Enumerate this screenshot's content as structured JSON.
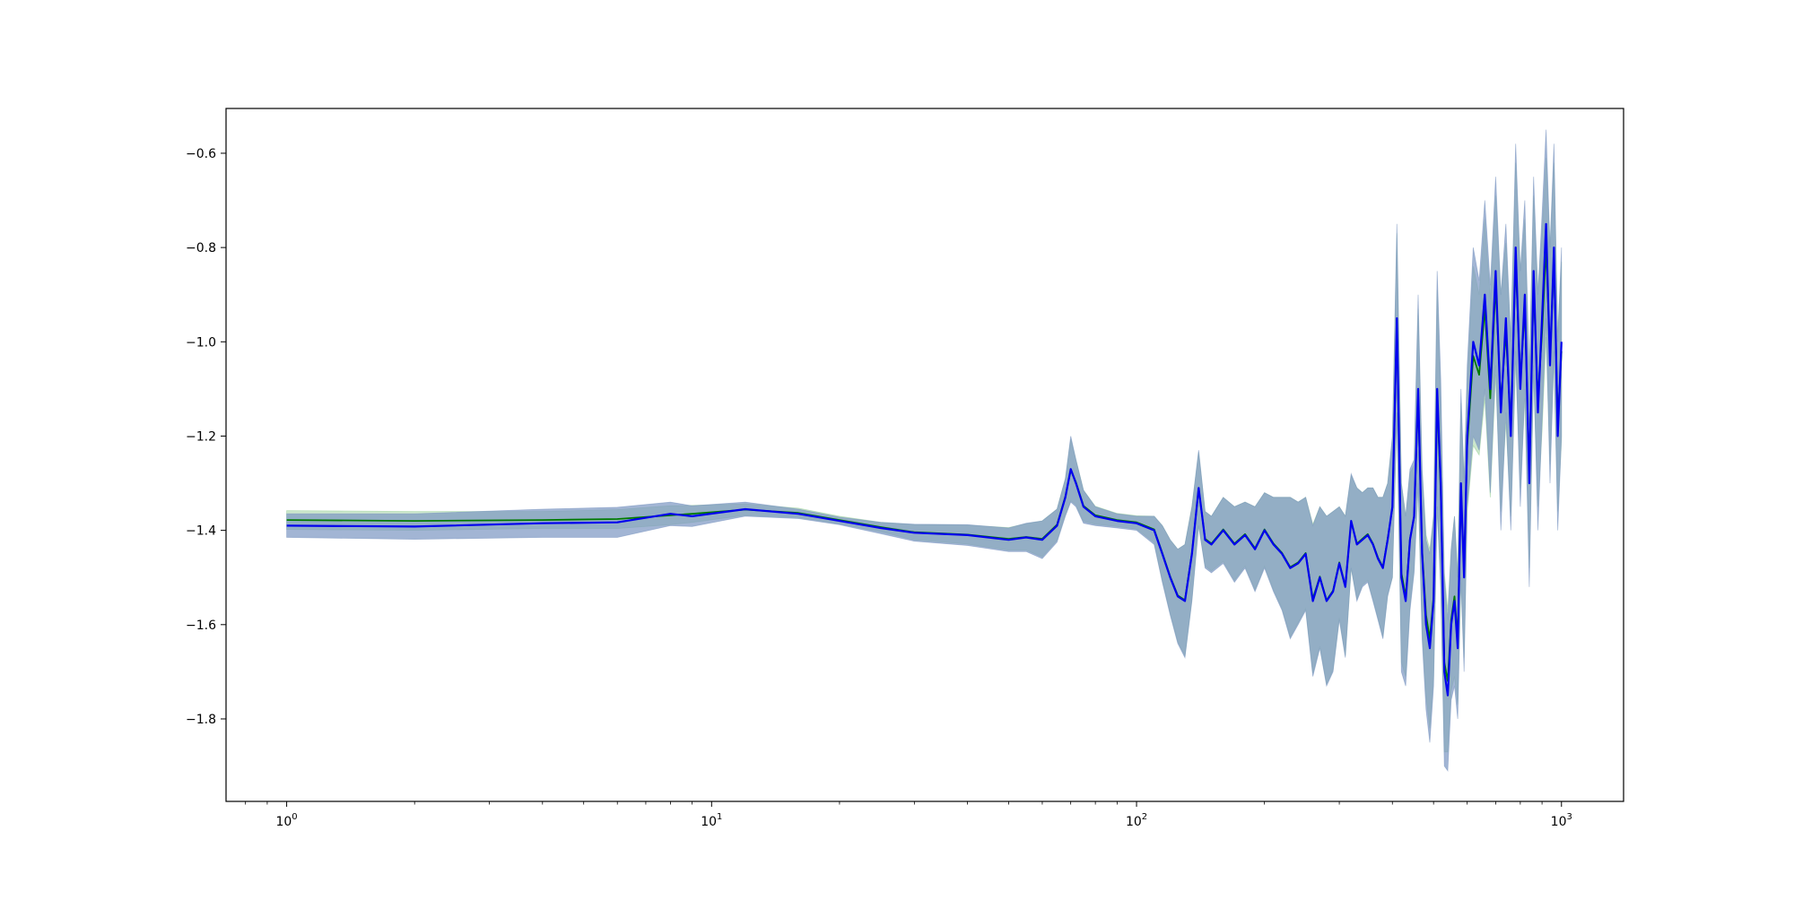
{
  "chart_data": {
    "type": "line",
    "title": "",
    "xlabel": "",
    "ylabel": "",
    "xscale": "log",
    "xlim": [
      0.72,
      1400
    ],
    "ylim": [
      -1.975,
      -0.505
    ],
    "grid": false,
    "legend": "none",
    "x_ticks": [
      {
        "value": 1,
        "base": "10",
        "exp": "0"
      },
      {
        "value": 10,
        "base": "10",
        "exp": "1"
      },
      {
        "value": 100,
        "base": "10",
        "exp": "2"
      },
      {
        "value": 1000,
        "base": "10",
        "exp": "3"
      }
    ],
    "y_ticks": [
      {
        "value": -0.6,
        "label": "−0.6"
      },
      {
        "value": -0.8,
        "label": "−0.8"
      },
      {
        "value": -1.0,
        "label": "−1.0"
      },
      {
        "value": -1.2,
        "label": "−1.2"
      },
      {
        "value": -1.4,
        "label": "−1.4"
      },
      {
        "value": -1.6,
        "label": "−1.6"
      },
      {
        "value": -1.8,
        "label": "−1.8"
      }
    ],
    "series": [
      {
        "color": "#0000ee",
        "band_color": "#7b96c2",
        "band_opacity": 0.7,
        "x": [
          1,
          2,
          4,
          6,
          8,
          9,
          12,
          16,
          20,
          25,
          30,
          40,
          50,
          55,
          60,
          65,
          68,
          70,
          72,
          75,
          80,
          90,
          100,
          110,
          115,
          120,
          125,
          130,
          135,
          140,
          145,
          150,
          160,
          170,
          180,
          190,
          200,
          210,
          220,
          230,
          240,
          250,
          260,
          270,
          280,
          290,
          300,
          310,
          320,
          330,
          340,
          350,
          360,
          370,
          380,
          390,
          400,
          410,
          420,
          430,
          440,
          450,
          460,
          470,
          480,
          490,
          500,
          510,
          520,
          530,
          540,
          550,
          560,
          570,
          580,
          590,
          600,
          620,
          640,
          660,
          680,
          700,
          720,
          740,
          760,
          780,
          800,
          820,
          840,
          860,
          880,
          900,
          920,
          940,
          960,
          980,
          1000
        ],
        "y": [
          -1.39,
          -1.392,
          -1.385,
          -1.383,
          -1.365,
          -1.37,
          -1.355,
          -1.365,
          -1.38,
          -1.395,
          -1.405,
          -1.41,
          -1.42,
          -1.415,
          -1.42,
          -1.39,
          -1.33,
          -1.27,
          -1.3,
          -1.35,
          -1.37,
          -1.38,
          -1.385,
          -1.4,
          -1.45,
          -1.5,
          -1.54,
          -1.55,
          -1.45,
          -1.31,
          -1.42,
          -1.43,
          -1.4,
          -1.43,
          -1.41,
          -1.44,
          -1.4,
          -1.43,
          -1.45,
          -1.48,
          -1.47,
          -1.45,
          -1.55,
          -1.5,
          -1.55,
          -1.53,
          -1.47,
          -1.52,
          -1.38,
          -1.43,
          -1.42,
          -1.41,
          -1.43,
          -1.46,
          -1.48,
          -1.42,
          -1.35,
          -0.95,
          -1.5,
          -1.55,
          -1.42,
          -1.37,
          -1.1,
          -1.45,
          -1.6,
          -1.65,
          -1.55,
          -1.1,
          -1.3,
          -1.7,
          -1.75,
          -1.6,
          -1.55,
          -1.65,
          -1.3,
          -1.5,
          -1.2,
          -1.0,
          -1.05,
          -0.9,
          -1.1,
          -0.85,
          -1.15,
          -0.95,
          -1.2,
          -0.8,
          -1.1,
          -0.9,
          -1.3,
          -0.85,
          -1.15,
          -0.95,
          -0.75,
          -1.05,
          -0.8,
          -1.2,
          -1.0
        ],
        "y_err": [
          0.025,
          0.027,
          0.03,
          0.032,
          0.025,
          0.022,
          0.015,
          0.01,
          0.008,
          0.012,
          0.018,
          0.022,
          0.025,
          0.03,
          0.04,
          0.035,
          0.04,
          0.07,
          0.05,
          0.035,
          0.02,
          0.015,
          0.015,
          0.03,
          0.06,
          0.08,
          0.1,
          0.12,
          0.1,
          0.08,
          0.06,
          0.06,
          0.07,
          0.08,
          0.07,
          0.09,
          0.08,
          0.1,
          0.12,
          0.15,
          0.13,
          0.12,
          0.16,
          0.15,
          0.18,
          0.17,
          0.12,
          0.15,
          0.1,
          0.12,
          0.1,
          0.1,
          0.12,
          0.13,
          0.15,
          0.12,
          0.15,
          0.2,
          0.2,
          0.18,
          0.15,
          0.12,
          0.2,
          0.18,
          0.18,
          0.2,
          0.18,
          0.25,
          0.22,
          0.2,
          0.16,
          0.16,
          0.18,
          0.15,
          0.2,
          0.2,
          0.15,
          0.2,
          0.18,
          0.2,
          0.22,
          0.2,
          0.25,
          0.2,
          0.2,
          0.22,
          0.25,
          0.2,
          0.22,
          0.2,
          0.25,
          0.22,
          0.2,
          0.25,
          0.22,
          0.2,
          0.2
        ]
      },
      {
        "color": "#007a00",
        "band_color": "#9ad09a",
        "band_opacity": 0.5,
        "x": [
          1,
          2,
          4,
          6,
          8,
          9,
          12,
          16,
          20,
          25,
          30,
          40,
          50,
          55,
          60,
          65,
          68,
          70,
          72,
          75,
          80,
          90,
          100,
          110,
          115,
          120,
          125,
          130,
          135,
          140,
          145,
          150,
          160,
          170,
          180,
          190,
          200,
          210,
          220,
          230,
          240,
          250,
          260,
          270,
          280,
          290,
          300,
          310,
          320,
          330,
          340,
          350,
          360,
          370,
          380,
          390,
          400,
          410,
          420,
          430,
          440,
          450,
          460,
          470,
          480,
          490,
          500,
          510,
          520,
          530,
          540,
          550,
          560,
          570,
          580,
          590,
          600,
          620,
          640,
          660,
          680,
          700,
          720,
          740,
          760,
          780,
          800,
          820,
          840,
          860,
          880,
          900,
          920,
          940,
          960,
          980,
          1000
        ],
        "y": [
          -1.378,
          -1.38,
          -1.378,
          -1.376,
          -1.368,
          -1.365,
          -1.356,
          -1.363,
          -1.378,
          -1.393,
          -1.404,
          -1.409,
          -1.418,
          -1.414,
          -1.418,
          -1.388,
          -1.328,
          -1.272,
          -1.298,
          -1.348,
          -1.368,
          -1.378,
          -1.383,
          -1.398,
          -1.448,
          -1.498,
          -1.538,
          -1.548,
          -1.448,
          -1.312,
          -1.418,
          -1.428,
          -1.398,
          -1.428,
          -1.408,
          -1.438,
          -1.398,
          -1.428,
          -1.448,
          -1.478,
          -1.468,
          -1.448,
          -1.545,
          -1.498,
          -1.548,
          -1.528,
          -1.468,
          -1.518,
          -1.382,
          -1.428,
          -1.418,
          -1.408,
          -1.428,
          -1.458,
          -1.478,
          -1.418,
          -1.352,
          -0.96,
          -1.49,
          -1.54,
          -1.418,
          -1.372,
          -1.12,
          -1.44,
          -1.58,
          -1.63,
          -1.54,
          -1.12,
          -1.32,
          -1.68,
          -1.72,
          -1.59,
          -1.54,
          -1.63,
          -1.32,
          -1.48,
          -1.22,
          -1.03,
          -1.07,
          -0.93,
          -1.12,
          -0.88,
          -1.13,
          -0.98,
          -1.18,
          -0.83,
          -1.08,
          -0.93,
          -1.27,
          -0.88,
          -1.12,
          -0.98,
          -0.8,
          -1.03,
          -0.83,
          -1.17,
          -1.02
        ],
        "y_err": [
          0.02,
          0.02,
          0.018,
          0.02,
          0.02,
          0.018,
          0.012,
          0.01,
          0.008,
          0.01,
          0.016,
          0.02,
          0.024,
          0.028,
          0.038,
          0.033,
          0.038,
          0.065,
          0.048,
          0.033,
          0.019,
          0.014,
          0.014,
          0.028,
          0.058,
          0.078,
          0.098,
          0.118,
          0.098,
          0.078,
          0.058,
          0.058,
          0.068,
          0.078,
          0.068,
          0.088,
          0.078,
          0.098,
          0.118,
          0.148,
          0.128,
          0.118,
          0.158,
          0.148,
          0.178,
          0.168,
          0.118,
          0.148,
          0.098,
          0.118,
          0.098,
          0.098,
          0.118,
          0.128,
          0.148,
          0.118,
          0.148,
          0.19,
          0.19,
          0.17,
          0.14,
          0.11,
          0.19,
          0.17,
          0.17,
          0.19,
          0.17,
          0.23,
          0.2,
          0.19,
          0.15,
          0.15,
          0.17,
          0.14,
          0.19,
          0.19,
          0.14,
          0.19,
          0.17,
          0.19,
          0.21,
          0.19,
          0.23,
          0.19,
          0.19,
          0.21,
          0.23,
          0.19,
          0.21,
          0.19,
          0.23,
          0.21,
          0.19,
          0.23,
          0.21,
          0.19,
          0.19
        ]
      }
    ]
  }
}
